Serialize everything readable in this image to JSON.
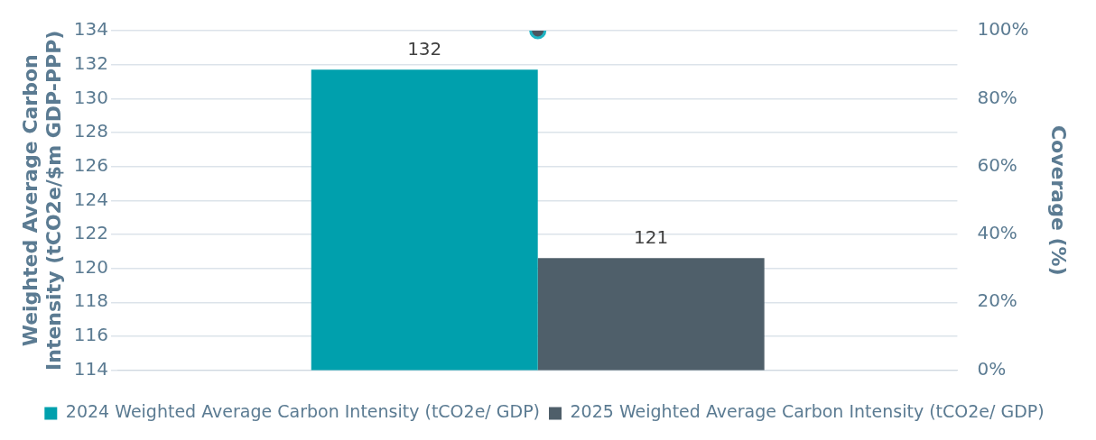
{
  "chart_data": {
    "type": "bar",
    "ylabel": "Weighted Average Carbon Intensity (tCO2e/$m GDP-PPP)",
    "y2label": "Coverage (%)",
    "categories": [
      null
    ],
    "series": [
      {
        "name": "2024 Weighted Average Carbon Intensity (tCO2e/ GDP)",
        "color": "#00a0ad",
        "values": [
          131.7
        ],
        "value_labels": [
          "132"
        ]
      },
      {
        "name": "2025 Weighted Average Carbon Intensity (tCO2e/ GDP)",
        "color": "#4f5f6a",
        "values": [
          120.6
        ],
        "value_labels": [
          "121"
        ]
      },
      {
        "type": "scatter",
        "axis": "y2",
        "color": "#4a5560",
        "values": [
          100
        ]
      }
    ],
    "ylim": [
      114,
      134
    ],
    "yticks": [
      114,
      116,
      118,
      120,
      122,
      124,
      126,
      128,
      130,
      132,
      134
    ],
    "y2lim": [
      0,
      100
    ],
    "y2ticks": [
      {
        "value": 0,
        "label": "0%"
      },
      {
        "value": 20,
        "label": "20%"
      },
      {
        "value": 40,
        "label": "40%"
      },
      {
        "value": 60,
        "label": "60%"
      },
      {
        "value": 80,
        "label": "80%"
      },
      {
        "value": 100,
        "label": "100%"
      }
    ],
    "grid": "y",
    "legend": "bottom",
    "marker": "circle"
  }
}
